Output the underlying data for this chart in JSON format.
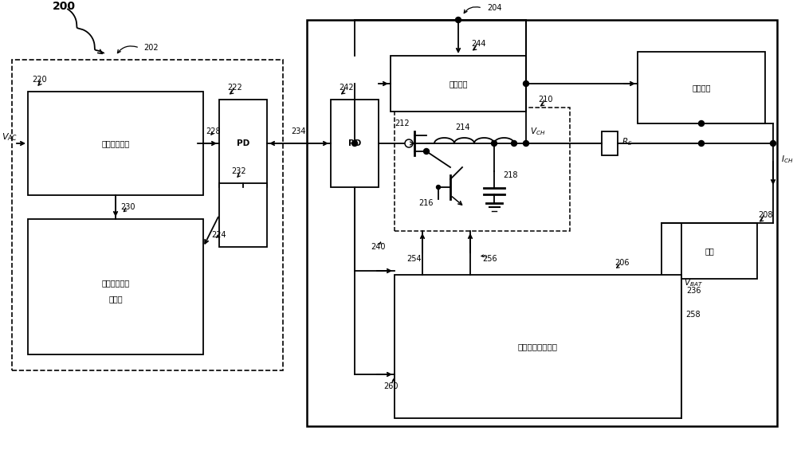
{
  "bg_color": "#ffffff",
  "line_color": "#000000",
  "label_200": "200",
  "label_202": "202",
  "label_204": "204",
  "label_206": "206",
  "label_208": "208",
  "label_210": "210",
  "label_212": "212",
  "label_214": "214",
  "label_216": "216",
  "label_218": "218",
  "label_220": "220",
  "label_222": "222",
  "label_224": "224",
  "label_228": "228",
  "label_230": "230",
  "label_232": "232",
  "label_234": "234",
  "label_236": "236",
  "label_240": "240",
  "label_242": "242",
  "label_244": "244",
  "label_254": "254",
  "label_256": "256",
  "label_258": "258",
  "label_260": "260",
  "text_box1": "电能转换电路",
  "text_box4": "直通通路",
  "text_box5": "系统电路",
  "text_box6": "电池",
  "text_box7_line1": "适配器端的控",
  "text_box7_line2": "制电路",
  "text_box8": "主机端的控制电路"
}
